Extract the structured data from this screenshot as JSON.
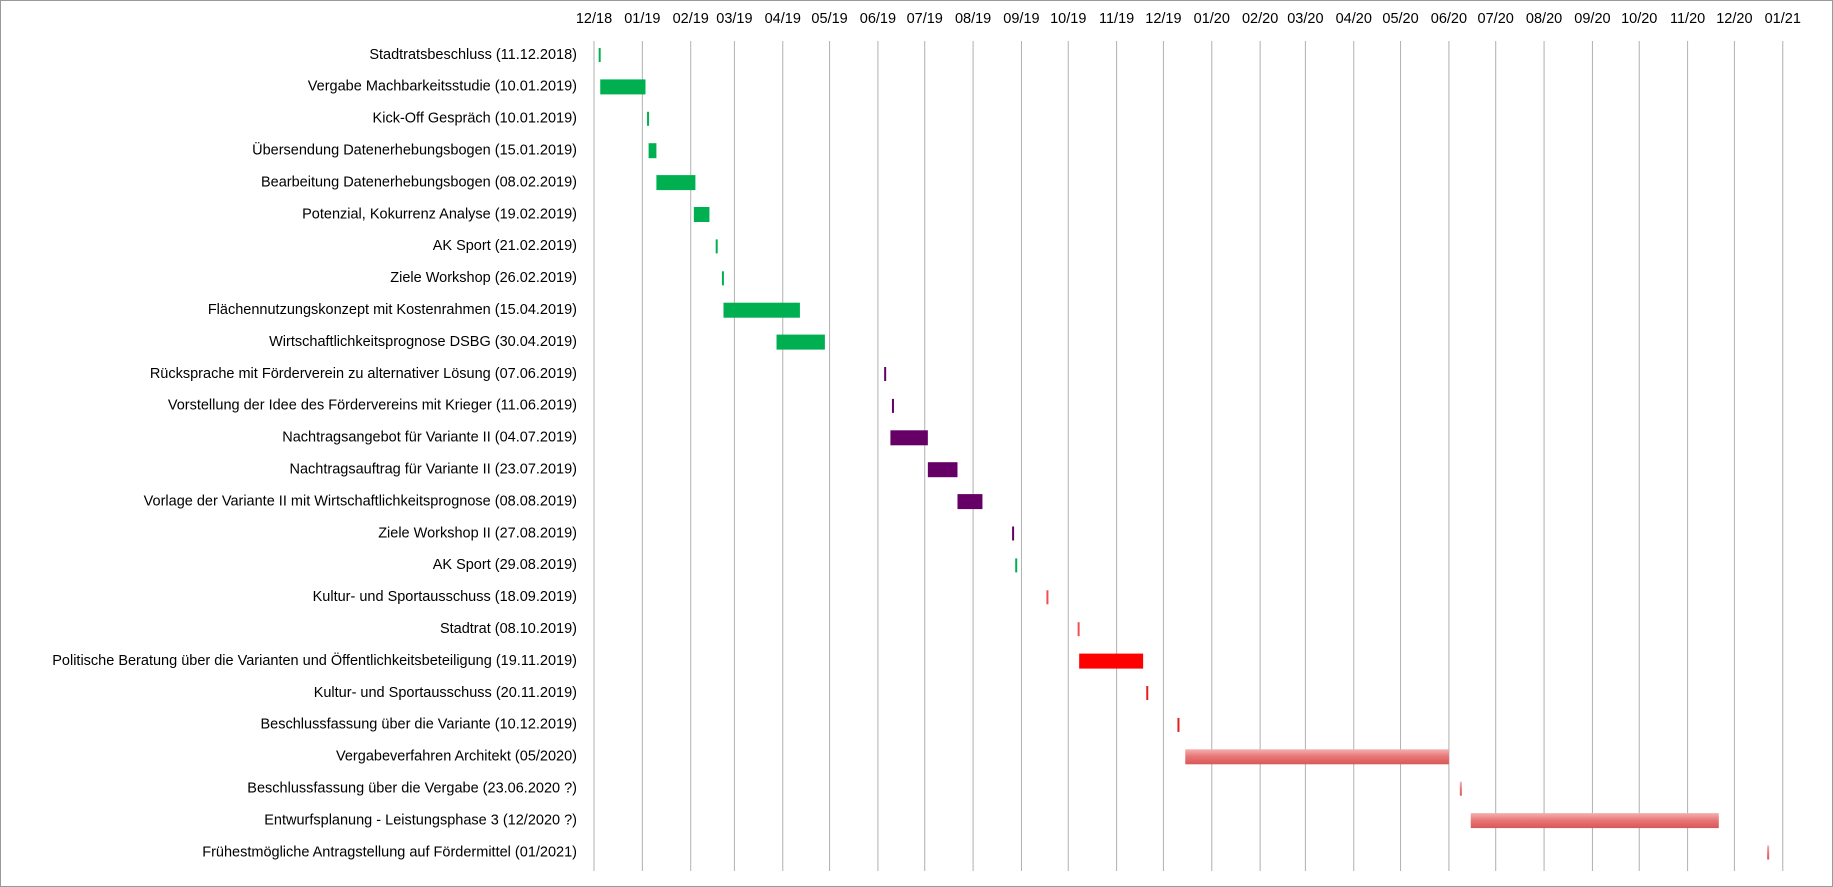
{
  "chart_data": {
    "type": "gantt",
    "xlim": [
      "2018-12-01",
      "2021-01-05"
    ],
    "xticks": [
      {
        "value": "2018-12-01",
        "label": "12/18"
      },
      {
        "value": "2019-01-01",
        "label": "01/19"
      },
      {
        "value": "2019-02-01",
        "label": "02/19"
      },
      {
        "value": "2019-03-01",
        "label": "03/19"
      },
      {
        "value": "2019-04-01",
        "label": "04/19"
      },
      {
        "value": "2019-05-01",
        "label": "05/19"
      },
      {
        "value": "2019-06-01",
        "label": "06/19"
      },
      {
        "value": "2019-07-01",
        "label": "07/19"
      },
      {
        "value": "2019-08-01",
        "label": "08/19"
      },
      {
        "value": "2019-09-01",
        "label": "09/19"
      },
      {
        "value": "2019-10-01",
        "label": "10/19"
      },
      {
        "value": "2019-11-01",
        "label": "11/19"
      },
      {
        "value": "2019-12-01",
        "label": "12/19"
      },
      {
        "value": "2020-01-01",
        "label": "01/20"
      },
      {
        "value": "2020-02-01",
        "label": "02/20"
      },
      {
        "value": "2020-03-01",
        "label": "03/20"
      },
      {
        "value": "2020-04-01",
        "label": "04/20"
      },
      {
        "value": "2020-05-01",
        "label": "05/20"
      },
      {
        "value": "2020-06-01",
        "label": "06/20"
      },
      {
        "value": "2020-07-01",
        "label": "07/20"
      },
      {
        "value": "2020-08-01",
        "label": "08/20"
      },
      {
        "value": "2020-09-01",
        "label": "09/20"
      },
      {
        "value": "2020-10-01",
        "label": "10/20"
      },
      {
        "value": "2020-11-01",
        "label": "11/20"
      },
      {
        "value": "2020-12-01",
        "label": "12/20"
      },
      {
        "value": "2021-01-01",
        "label": "01/21"
      }
    ],
    "grid": true,
    "tasks": [
      {
        "label": "Stadtratsbeschluss (11.12.2018)",
        "start": "2018-12-04",
        "end": "2018-12-05",
        "color": "#00b050"
      },
      {
        "label": "Vergabe Machbarkeitsstudie (10.01.2019)",
        "start": "2018-12-05",
        "end": "2019-01-03",
        "color": "#00b050"
      },
      {
        "label": "Kick-Off Gespräch (10.01.2019)",
        "start": "2019-01-04",
        "end": "2019-01-05",
        "color": "#00b050"
      },
      {
        "label": "Übersendung Datenerhebungsbogen (15.01.2019)",
        "start": "2019-01-05",
        "end": "2019-01-10",
        "color": "#00b050"
      },
      {
        "label": "Bearbeitung Datenerhebungsbogen (08.02.2019)",
        "start": "2019-01-10",
        "end": "2019-02-04",
        "color": "#00b050"
      },
      {
        "label": "Potenzial, Kokurrenz Analyse (19.02.2019)",
        "start": "2019-02-03",
        "end": "2019-02-13",
        "color": "#00b050"
      },
      {
        "label": "AK Sport (21.02.2019)",
        "start": "2019-02-17",
        "end": "2019-02-18",
        "color": "#00b050"
      },
      {
        "label": "Ziele Workshop (26.02.2019)",
        "start": "2019-02-21",
        "end": "2019-02-22",
        "color": "#00b050"
      },
      {
        "label": "Flächennutzungskonzept mit Kostenrahmen (15.04.2019)",
        "start": "2019-02-22",
        "end": "2019-04-12",
        "color": "#00b050"
      },
      {
        "label": "Wirtschaftlichkeitsprognose DSBG (30.04.2019)",
        "start": "2019-03-28",
        "end": "2019-04-28",
        "color": "#00b050"
      },
      {
        "label": "Rücksprache mit Förderverein zu alternativer Lösung (07.06.2019)",
        "start": "2019-06-05",
        "end": "2019-06-06",
        "color": "#660066"
      },
      {
        "label": "Vorstellung der Idee des Fördervereins mit Krieger (11.06.2019)",
        "start": "2019-06-10",
        "end": "2019-06-11",
        "color": "#660066"
      },
      {
        "label": "Nachtragsangebot für Variante II (04.07.2019)",
        "start": "2019-06-09",
        "end": "2019-07-03",
        "color": "#660066"
      },
      {
        "label": "Nachtragsauftrag für Variante II (23.07.2019)",
        "start": "2019-07-03",
        "end": "2019-07-22",
        "color": "#660066"
      },
      {
        "label": "Vorlage der Variante II mit Wirtschaftlichkeitsprognose (08.08.2019)",
        "start": "2019-07-22",
        "end": "2019-08-07",
        "color": "#660066"
      },
      {
        "label": "Ziele Workshop II (27.08.2019)",
        "start": "2019-08-26",
        "end": "2019-08-27",
        "color": "#660066"
      },
      {
        "label": "AK Sport (29.08.2019)",
        "start": "2019-08-28",
        "end": "2019-08-29",
        "color": "#00b050"
      },
      {
        "label": "Kultur- und Sportausschuss (18.09.2019)",
        "start": "2019-09-17",
        "end": "2019-09-18",
        "color": "#f05050"
      },
      {
        "label": "Stadtrat (08.10.2019)",
        "start": "2019-10-07",
        "end": "2019-10-08",
        "color": "#f05050"
      },
      {
        "label": "Politische Beratung über die Varianten und Öffentlichkeitsbeteiligung (19.11.2019)",
        "start": "2019-10-08",
        "end": "2019-11-18",
        "color": "#ff0000"
      },
      {
        "label": "Kultur- und Sportausschuss (20.11.2019)",
        "start": "2019-11-20",
        "end": "2019-11-21",
        "color": "#e02020"
      },
      {
        "label": "Beschlussfassung über die Variante (10.12.2019)",
        "start": "2019-12-10",
        "end": "2019-12-11",
        "color": "#e02020"
      },
      {
        "label": "Vergabeverfahren Architekt (05/2020)",
        "start": "2019-12-15",
        "end": "2020-06-01",
        "color": "#e87474"
      },
      {
        "label": "Beschlussfassung über die Vergabe (23.06.2020 ?)",
        "start": "2020-06-08",
        "end": "2020-06-09",
        "color": "#e87474"
      },
      {
        "label": "Entwurfsplanung - Leistungsphase 3 (12/2020 ?)",
        "start": "2020-06-15",
        "end": "2020-11-21",
        "color": "#e87474"
      },
      {
        "label": "Frühestmögliche Antragstellung auf Fördermittel (01/2021)",
        "start": "2020-12-22",
        "end": "2020-12-23",
        "color": "#e87474"
      }
    ]
  }
}
